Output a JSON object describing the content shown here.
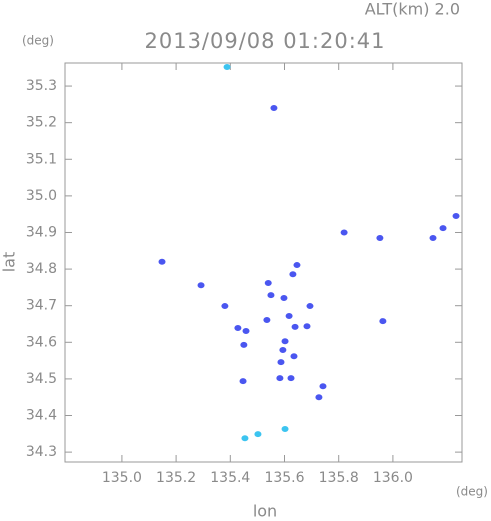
{
  "chart_data": {
    "type": "scatter",
    "altitude_label": "ALT(km) 2.0",
    "title": "2013/09/08 01:20:41",
    "y_unit": "(deg)",
    "x_unit": "(deg)",
    "xlabel": "lon",
    "ylabel": "lat",
    "xlim": [
      134.79,
      136.255
    ],
    "ylim": [
      34.273,
      35.363
    ],
    "xticks": [
      {
        "value": 135,
        "label": "135.0"
      },
      135.2,
      135.4,
      135.6,
      135.8,
      {
        "value": 136,
        "label": "136.0"
      }
    ],
    "yticks": [
      34.3,
      34.4,
      34.5,
      34.6,
      34.7,
      34.8,
      34.9,
      {
        "value": 35,
        "label": "35.0"
      },
      35.1,
      35.2,
      35.3
    ],
    "series": [
      {
        "color": "#4a56f0",
        "x": [
          135.561,
          135.148,
          136.148,
          136.185,
          136.233,
          135.82,
          135.952,
          135.646,
          135.631,
          135.292,
          135.54,
          135.55,
          135.598,
          135.694,
          135.38,
          135.535,
          135.617,
          135.639,
          135.683,
          135.428,
          135.458,
          135.963,
          135.45,
          135.602,
          135.594,
          135.635,
          135.587,
          135.583,
          135.624,
          135.447,
          135.742,
          135.727
        ],
        "y": [
          35.24,
          34.82,
          34.885,
          34.912,
          34.945,
          34.9,
          34.885,
          34.811,
          34.786,
          34.756,
          34.762,
          34.729,
          34.721,
          34.699,
          34.699,
          34.661,
          34.672,
          34.642,
          34.644,
          34.639,
          34.631,
          34.658,
          34.593,
          34.603,
          34.579,
          34.562,
          34.546,
          34.502,
          34.502,
          34.494,
          34.48,
          34.45
        ]
      },
      {
        "color": "#3cc4f0",
        "x": [
          135.388,
          135.454,
          135.502,
          135.602
        ],
        "y": [
          35.352,
          34.338,
          34.349,
          34.363
        ]
      }
    ]
  }
}
